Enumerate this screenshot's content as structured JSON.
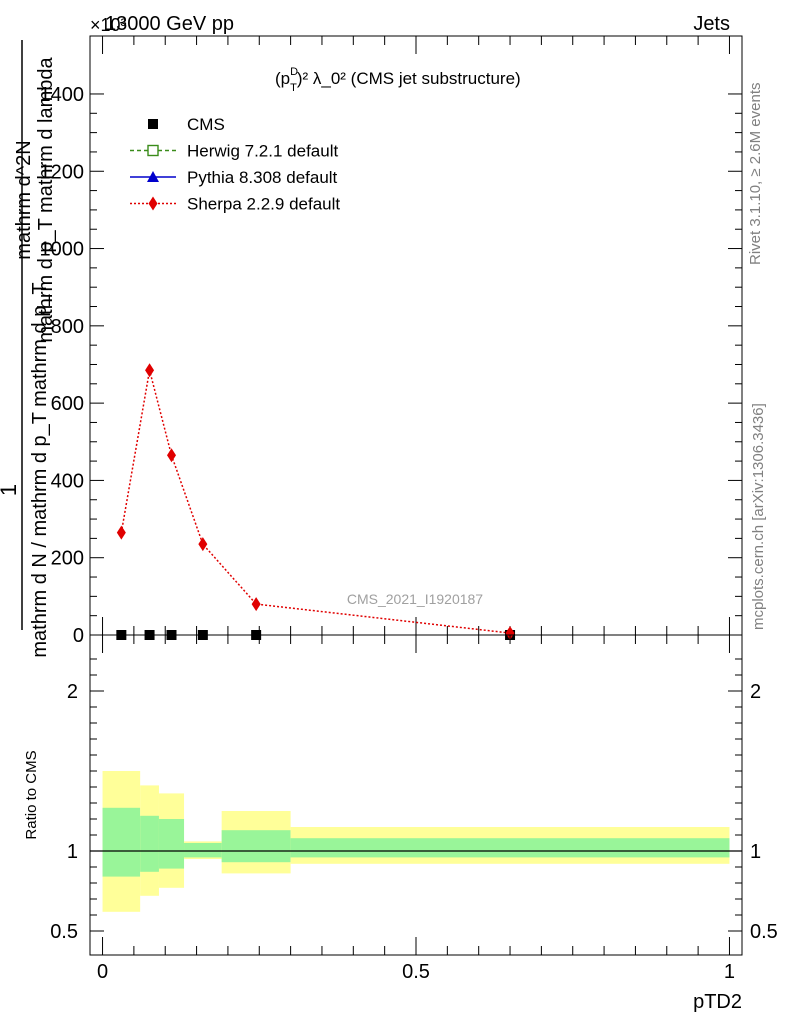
{
  "header": {
    "left": "13000 GeV pp",
    "right": "Jets",
    "exponent": "×10³"
  },
  "title": {
    "prefix": "(p",
    "sup": "D",
    "sub": "T",
    "rest": ")² λ_0² (CMS jet substructure)"
  },
  "watermark": "CMS_2021_I1920187",
  "side_labels": {
    "rivet": "Rivet 3.1.10, ≥ 2.6M events",
    "mcplots": "mcplots.cern.ch [arXiv:1306.3436]"
  },
  "y_axis": {
    "label_top": "1",
    "label_numerator": "mathrm d N / mathrm d p_T mathrm d p_T",
    "label_denominator": "mathrm d N / mathrm d p_T mathrm d p_T mathrm d lambda",
    "main_line1": "mathrm d^2N",
    "main_line2": "mathrm d p_T mathrm d lambda"
  },
  "ratio_ylabel": "Ratio to CMS",
  "x_label": "pTD2",
  "legend": [
    {
      "label": "CMS",
      "color": "#000000",
      "marker": "square-filled",
      "line": "none"
    },
    {
      "label": "Herwig 7.2.1 default",
      "color": "#3a8c1a",
      "marker": "square-open",
      "line": "dashed"
    },
    {
      "label": "Pythia 8.308 default",
      "color": "#0000cc",
      "marker": "triangle",
      "line": "solid"
    },
    {
      "label": "Sherpa 2.2.9 default",
      "color": "#e00000",
      "marker": "diamond",
      "line": "dotted"
    }
  ],
  "chart_data": {
    "type": "line",
    "x_range": [
      -0.02,
      1.02
    ],
    "main_ylim": [
      0,
      1550
    ],
    "main_yticks": [
      0,
      200,
      400,
      600,
      800,
      1000,
      1200,
      1400
    ],
    "main_ytick_labels": [
      "0",
      "200",
      "400",
      "600",
      "800",
      "1000",
      "1200",
      "1400"
    ],
    "ratio_ylim": [
      0.35,
      2.35
    ],
    "ratio_yticks": [
      0.5,
      1,
      2
    ],
    "ratio_ytick_labels": [
      "0.5",
      "1",
      "2"
    ],
    "xticks": [
      0,
      0.5,
      1
    ],
    "xtick_labels": [
      "0",
      "0.5",
      "1"
    ],
    "bin_edges": [
      0,
      0.06,
      0.09,
      0.13,
      0.19,
      0.3,
      1.0
    ],
    "bin_centers": [
      0.03,
      0.075,
      0.11,
      0.16,
      0.245,
      0.65
    ],
    "series": [
      {
        "name": "CMS",
        "values": [
          0,
          0,
          0,
          0,
          0,
          0
        ]
      },
      {
        "name": "Sherpa 2.2.9 default",
        "values": [
          265,
          685,
          465,
          235,
          80,
          5
        ]
      }
    ],
    "ratio_bands": {
      "inner_low": [
        0.84,
        0.87,
        0.89,
        0.96,
        0.93,
        0.96
      ],
      "inner_high": [
        1.27,
        1.22,
        1.2,
        1.05,
        1.13,
        1.08
      ],
      "outer_low": [
        0.62,
        0.72,
        0.77,
        0.95,
        0.86,
        0.92
      ],
      "outer_high": [
        1.5,
        1.41,
        1.36,
        1.06,
        1.25,
        1.15
      ]
    },
    "ratio_reference": 1
  }
}
